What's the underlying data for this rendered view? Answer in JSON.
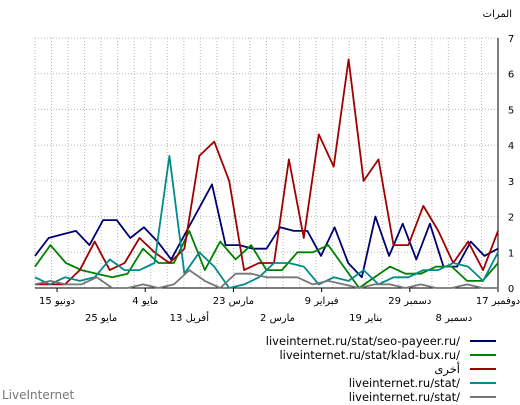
{
  "chart_data": {
    "type": "line",
    "ylabel": "المرات",
    "ylim": [
      0,
      7
    ],
    "yticks": [
      0,
      1,
      2,
      3,
      4,
      5,
      6,
      7
    ],
    "grid": true,
    "x_order": "right-to-left (newest on right)",
    "x_ticks_top": [
      "17 دوفمبر",
      "29 دسمبر",
      "9 فبراير",
      "23 مارس",
      "4 مايو",
      "15 دونيو"
    ],
    "x_ticks_bottom": [
      "8 دسمبر",
      "19 بناير",
      "2 مارس",
      "13 أفريل",
      "25 مايو"
    ],
    "series": [
      {
        "name": "liveinternet.ru/stat/seo-payeer.ru/",
        "color": "#00006e",
        "values": [
          1.1,
          0.9,
          1.3,
          0.6,
          0.6,
          1.8,
          0.8,
          1.8,
          0.9,
          2.0,
          0.3,
          0.7,
          1.7,
          0.9,
          1.6,
          1.6,
          1.7,
          1.1,
          1.1,
          1.2,
          1.2,
          2.9,
          2.2,
          1.5,
          0.8,
          1.3,
          1.7,
          1.4,
          1.9,
          1.9,
          1.2,
          1.6,
          1.5,
          1.4,
          0.9
        ]
      },
      {
        "name": "liveinternet.ru/stat/klad-bux.ru/",
        "color": "#008000",
        "values": [
          0.7,
          0.2,
          0.2,
          0.6,
          0.6,
          0.4,
          0.4,
          0.6,
          0.3,
          0.0,
          0.6,
          1.2,
          1.0,
          1.0,
          0.5,
          0.5,
          1.2,
          0.8,
          1.3,
          0.5,
          1.6,
          0.7,
          0.7,
          1.1,
          0.4,
          0.3,
          0.4,
          0.5,
          0.7,
          1.2,
          0.6
        ]
      },
      {
        "name": "أخرى",
        "color": "#a00000",
        "values": [
          1.6,
          0.5,
          1.3,
          0.7,
          1.6,
          2.3,
          1.2,
          1.2,
          3.6,
          3.0,
          6.4,
          3.4,
          4.3,
          1.4,
          3.6,
          0.7,
          0.7,
          0.5,
          3.0,
          4.1,
          3.7,
          1.1,
          0.7,
          1.0,
          1.4,
          0.7,
          0.5,
          1.3,
          0.5,
          0.1,
          0.1,
          0.1
        ]
      },
      {
        "name": "liveinternet.ru/stat/",
        "color": "#008b8b",
        "values": [
          1.0,
          0.2,
          0.6,
          0.7,
          0.5,
          0.5,
          0.3,
          0.3,
          0.1,
          0.5,
          0.2,
          0.3,
          0.1,
          0.6,
          0.7,
          0.7,
          0.3,
          0.1,
          0.0,
          0.6,
          1.0,
          0.4,
          3.7,
          0.7,
          0.5,
          0.5,
          0.8,
          0.3,
          0.2,
          0.3,
          0.1,
          0.3
        ]
      },
      {
        "name": "liveinternet.ru/stat/",
        "color": "#777777",
        "values": [
          0.0,
          0.0,
          0.1,
          0.0,
          0.0,
          0.1,
          0.0,
          0.1,
          0.1,
          0.0,
          0.1,
          0.2,
          0.1,
          0.3,
          0.3,
          0.3,
          0.4,
          0.4,
          0.0,
          0.2,
          0.5,
          0.1,
          0.0,
          0.1,
          0.0,
          0.0,
          0.3,
          0.1,
          0.1,
          0.2,
          0.1
        ]
      }
    ]
  },
  "footer": {
    "brand": "LiveInternet"
  }
}
